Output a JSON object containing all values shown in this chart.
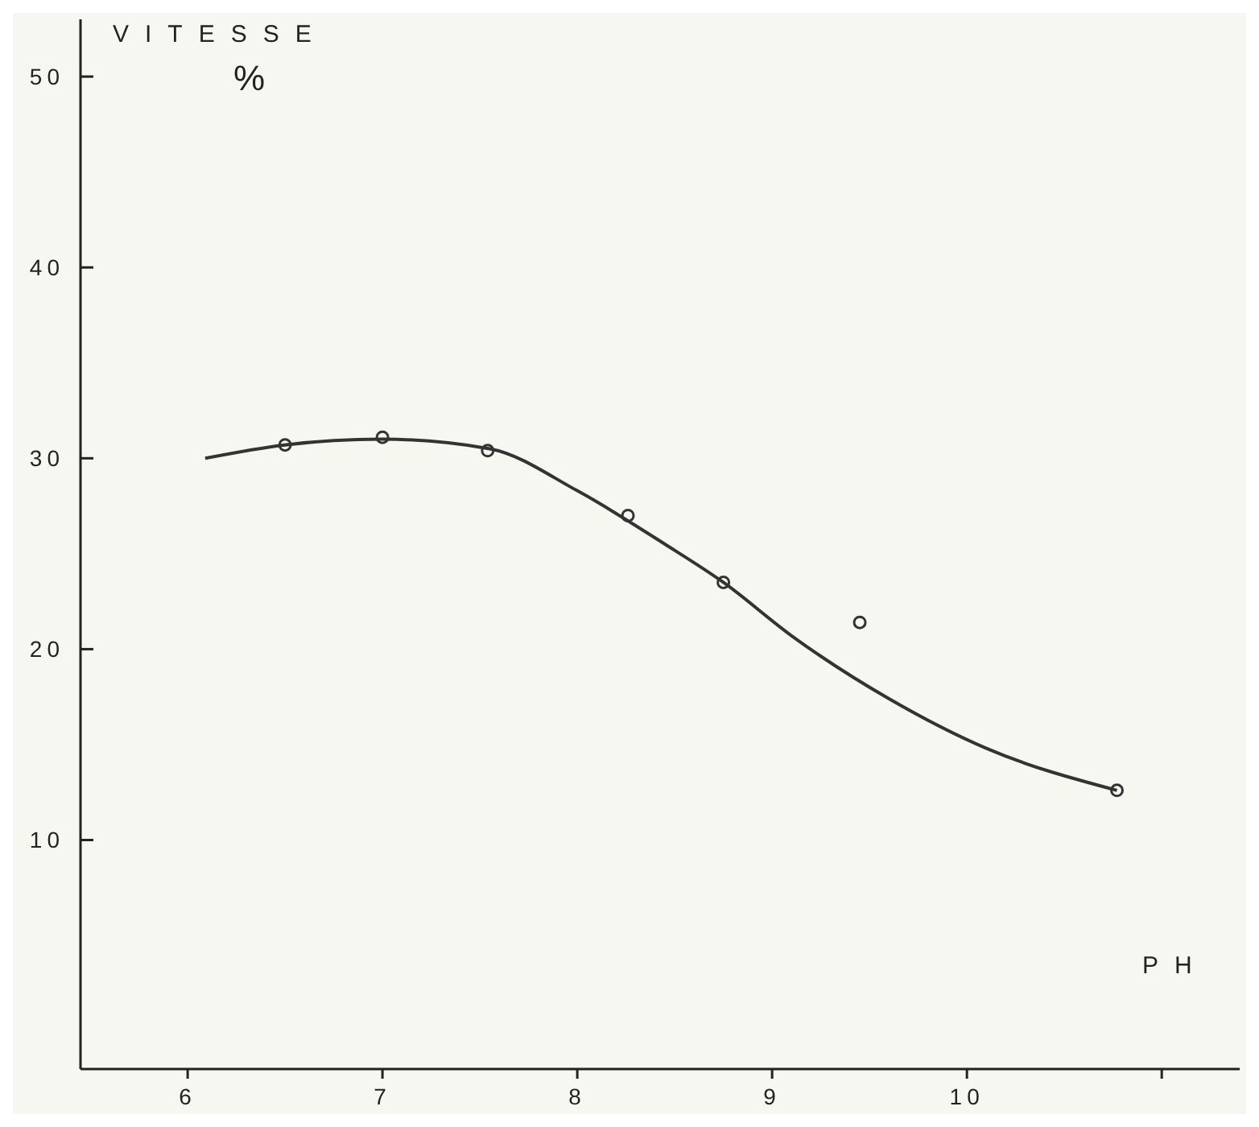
{
  "chart_data": {
    "type": "scatter",
    "xlabel": "PH",
    "ylabel": "VITESSE\n%",
    "xlim": [
      5.45,
      11.4
    ],
    "ylim": [
      -2,
      53
    ],
    "xticks": [
      6,
      7,
      8,
      9,
      10,
      {
        "value": 11,
        "label": null
      }
    ],
    "yticks": [
      10,
      20,
      30,
      40,
      50
    ],
    "grid": false,
    "series": [
      {
        "color": "#333333",
        "marker": "circle",
        "x": [
          6.5,
          7.0,
          7.54,
          8.26,
          8.75,
          9.45,
          10.77
        ],
        "values": [
          30.7,
          31.1,
          30.4,
          27.0,
          23.5,
          21.4,
          12.6
        ]
      },
      {
        "type": "line",
        "color": "#333333",
        "marker": "none",
        "line_style": "solid",
        "x": [
          6.09,
          6.5,
          7.0,
          7.55,
          8.0,
          8.45,
          8.75,
          9.1,
          9.6,
          10.1,
          10.77
        ],
        "values": [
          30.0,
          30.7,
          31.0,
          30.5,
          28.3,
          25.5,
          23.5,
          20.7,
          17.4,
          14.8,
          12.6
        ]
      }
    ]
  }
}
